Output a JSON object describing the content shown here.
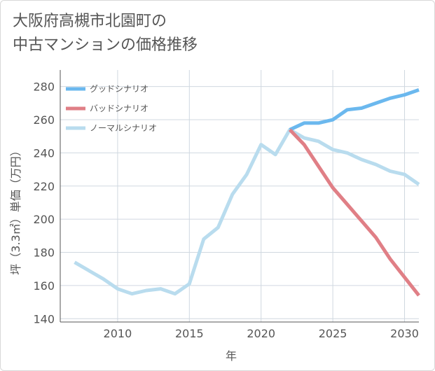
{
  "title_lines": [
    "大阪府高槻市北園町の",
    "中古マンションの価格推移"
  ],
  "chart_data": {
    "type": "line",
    "title": "大阪府高槻市北園町の中古マンションの価格推移",
    "xlabel": "年",
    "ylabel": "坪（3.3㎡）単価（万円）",
    "xlim": [
      2006,
      2031
    ],
    "ylim": [
      138,
      290
    ],
    "xticks": [
      2010,
      2015,
      2020,
      2025,
      2030
    ],
    "yticks": [
      140,
      160,
      180,
      200,
      220,
      240,
      260,
      280
    ],
    "grid": true,
    "legend_position": "top-left",
    "series": [
      {
        "name": "グッドシナリオ",
        "color": "#6bb8ee",
        "x": [
          2022,
          2023,
          2024,
          2025,
          2026,
          2027,
          2028,
          2029,
          2030,
          2031
        ],
        "y": [
          254,
          258,
          258,
          260,
          266,
          267,
          270,
          273,
          275,
          278
        ]
      },
      {
        "name": "バッドシナリオ",
        "color": "#e07f86",
        "x": [
          2022,
          2023,
          2024,
          2025,
          2026,
          2027,
          2028,
          2029,
          2030,
          2031
        ],
        "y": [
          254,
          245,
          232,
          219,
          209,
          199,
          189,
          176,
          165,
          154
        ]
      },
      {
        "name": "ノーマルシナリオ",
        "color": "#b9dcee",
        "x": [
          2007,
          2008,
          2009,
          2010,
          2011,
          2012,
          2013,
          2014,
          2015,
          2016,
          2017,
          2018,
          2019,
          2020,
          2021,
          2022,
          2023,
          2024,
          2025,
          2026,
          2027,
          2028,
          2029,
          2030,
          2031
        ],
        "y": [
          174,
          169,
          164,
          158,
          155,
          157,
          158,
          155,
          161,
          188,
          195,
          215,
          227,
          245,
          239,
          254,
          249,
          247,
          242,
          240,
          236,
          233,
          229,
          227,
          221
        ]
      }
    ]
  }
}
